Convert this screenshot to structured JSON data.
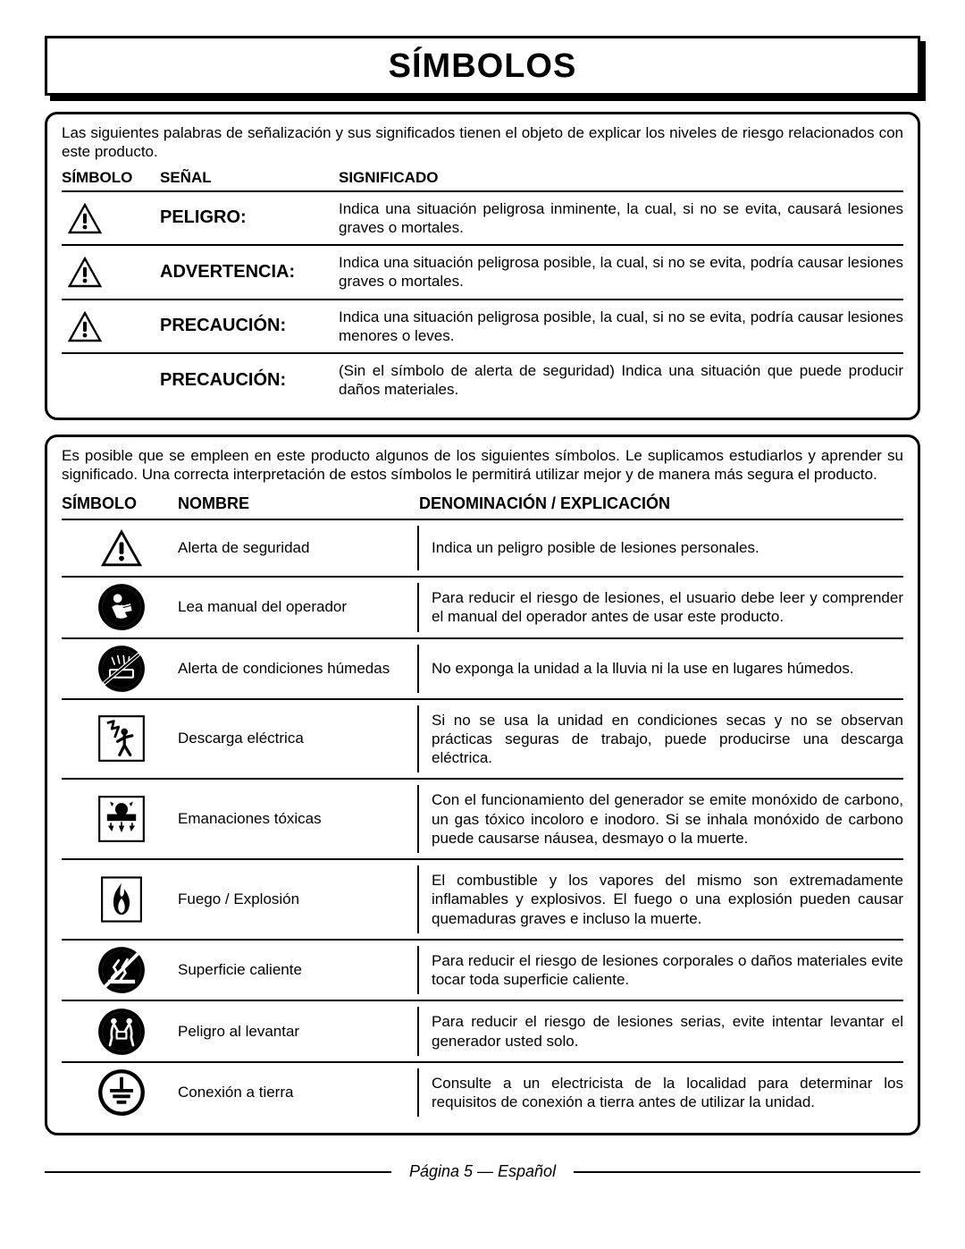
{
  "colors": {
    "text": "#000000",
    "bg": "#ffffff",
    "border": "#000000"
  },
  "title": "SÍMBOLOS",
  "panel1": {
    "intro": "Las siguientes palabras de señalización y sus significados tienen el objeto de explicar los niveles de riesgo relacionados con este producto.",
    "headers": {
      "symbol": "SÍMBOLO",
      "signal": "SEÑAL",
      "meaning": "SIGNIFICADO"
    },
    "rows": [
      {
        "icon": true,
        "signal": "PELIGRO:",
        "meaning": "Indica una situación peligrosa inminente, la cual, si no se evita, causará lesiones graves o mortales."
      },
      {
        "icon": true,
        "signal": "ADVERTENCIA:",
        "meaning": "Indica una situación peligrosa posible, la cual, si no se evita, podría causar lesiones graves o mortales."
      },
      {
        "icon": true,
        "signal": "PRECAUCIÓN:",
        "meaning": "Indica una situación peligrosa posible, la cual, si no se evita, podría causar lesiones menores o leves."
      },
      {
        "icon": false,
        "signal": "PRECAUCIÓN:",
        "meaning": "(Sin el símbolo de alerta de seguridad) Indica una situación que puede producir daños materiales."
      }
    ]
  },
  "panel2": {
    "intro": "Es posible que se empleen en este producto algunos de los siguientes símbolos. Le suplicamos estudiarlos y aprender su significado. Una correcta interpretación de estos símbolos le permitirá utilizar mejor y de manera más segura el producto.",
    "headers": {
      "symbol": "SÍMBOLO",
      "name": "NOMBRE",
      "explanation": "DENOMINACIÓN / EXPLICACIÓN"
    },
    "rows": [
      {
        "icon": "alert",
        "name": "Alerta de seguridad",
        "expl": "Indica un peligro posible de lesiones personales."
      },
      {
        "icon": "manual",
        "name": "Lea manual del operador",
        "expl": "Para reducir el riesgo de lesiones, el usuario debe leer y comprender el manual del operador antes de usar este producto."
      },
      {
        "icon": "wet",
        "name": "Alerta de condiciones húmedas",
        "expl": "No exponga la unidad a la lluvia ni la use en lugares húmedos."
      },
      {
        "icon": "shock",
        "name": "Descarga eléctrica",
        "expl": "Si no se usa la unidad en condiciones secas y no se observan prácticas seguras de trabajo, puede producirse una descarga eléctrica."
      },
      {
        "icon": "fumes",
        "name": "Emanaciones tóxicas",
        "expl": "Con el funcionamiento del generador se emite monóxido de carbono, un gas tóxico incoloro e inodoro. Si se inhala monóxido de carbono puede causarse náusea, desmayo o la muerte."
      },
      {
        "icon": "fire",
        "name": "Fuego / Explosión",
        "expl": "El combustible y los vapores del mismo son extremadamente inflamables y explosivos. El fuego o una explosión pueden causar quemaduras graves e incluso la muerte."
      },
      {
        "icon": "hot",
        "name": "Superficie caliente",
        "expl": "Para reducir el riesgo de lesiones corporales o daños materiales evite tocar toda superficie caliente."
      },
      {
        "icon": "lift",
        "name": "Peligro al levantar",
        "expl": "Para reducir el riesgo de lesiones serias, evite intentar levantar el generador usted solo."
      },
      {
        "icon": "ground",
        "name": "Conexión a tierra",
        "expl": "Consulte a un electricista de la localidad para determinar los requisitos de conexión a tierra antes de utilizar la unidad."
      }
    ]
  },
  "footer": "Página 5  —  Español"
}
